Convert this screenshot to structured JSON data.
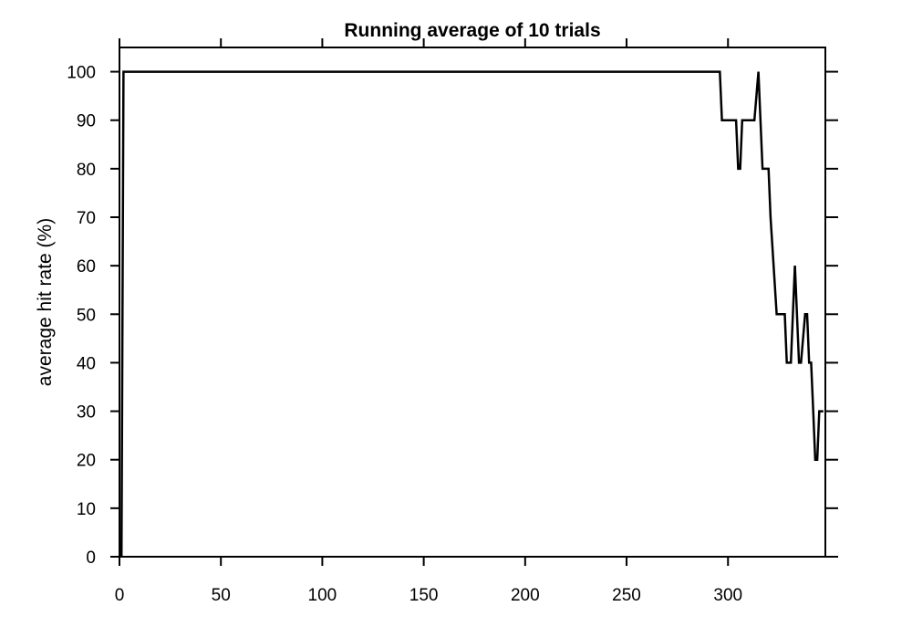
{
  "chart_data": {
    "type": "line",
    "title": "Running average of 10 trials",
    "xlabel": "",
    "ylabel": "average hit rate (%)",
    "xlim": [
      0,
      348
    ],
    "ylim": [
      0,
      105
    ],
    "xticks": [
      0,
      50,
      100,
      150,
      200,
      250,
      300
    ],
    "yticks": [
      0,
      10,
      20,
      30,
      40,
      50,
      60,
      70,
      80,
      90,
      100
    ],
    "grid": false,
    "line_color": "#000000",
    "series": [
      {
        "name": "",
        "x": [
          1,
          2,
          296,
          297,
          304,
          305,
          306,
          307,
          313,
          315,
          317,
          318,
          320,
          321,
          324,
          325,
          328,
          329,
          331,
          333,
          335,
          336,
          338,
          339,
          340,
          341,
          342,
          343,
          344,
          345,
          346,
          347
        ],
        "y": [
          0,
          100,
          100,
          90,
          90,
          80,
          80,
          90,
          90,
          100,
          80,
          80,
          80,
          70,
          50,
          50,
          50,
          40,
          40,
          60,
          40,
          40,
          50,
          50,
          40,
          40,
          30,
          20,
          20,
          30,
          30,
          30
        ]
      }
    ]
  }
}
